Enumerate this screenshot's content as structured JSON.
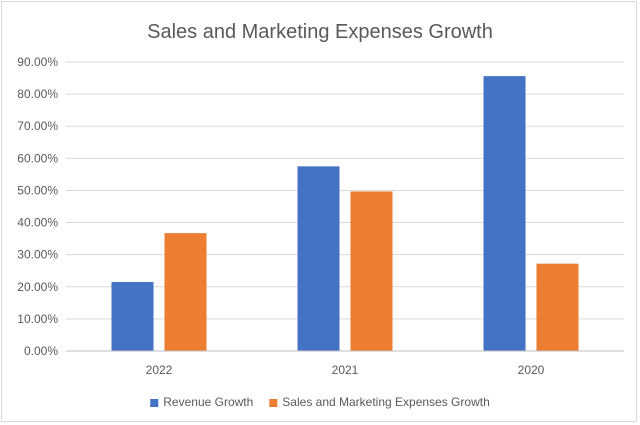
{
  "chart_data": {
    "type": "bar",
    "title": "Sales and Marketing Expenses Growth",
    "xlabel": "",
    "ylabel": "",
    "categories": [
      "2022",
      "2021",
      "2020"
    ],
    "series": [
      {
        "name": "Revenue Growth",
        "color": "#4472c4",
        "values": [
          21.5,
          57.5,
          85.6
        ]
      },
      {
        "name": "Sales and Marketing Expenses Growth",
        "color": "#ed7d31",
        "values": [
          36.7,
          49.7,
          27.2
        ]
      }
    ],
    "ylim": [
      0,
      90
    ],
    "yticks": [
      "0.00%",
      "10.00%",
      "20.00%",
      "30.00%",
      "40.00%",
      "50.00%",
      "60.00%",
      "70.00%",
      "80.00%",
      "90.00%"
    ],
    "grid": true,
    "legend_position": "bottom"
  }
}
